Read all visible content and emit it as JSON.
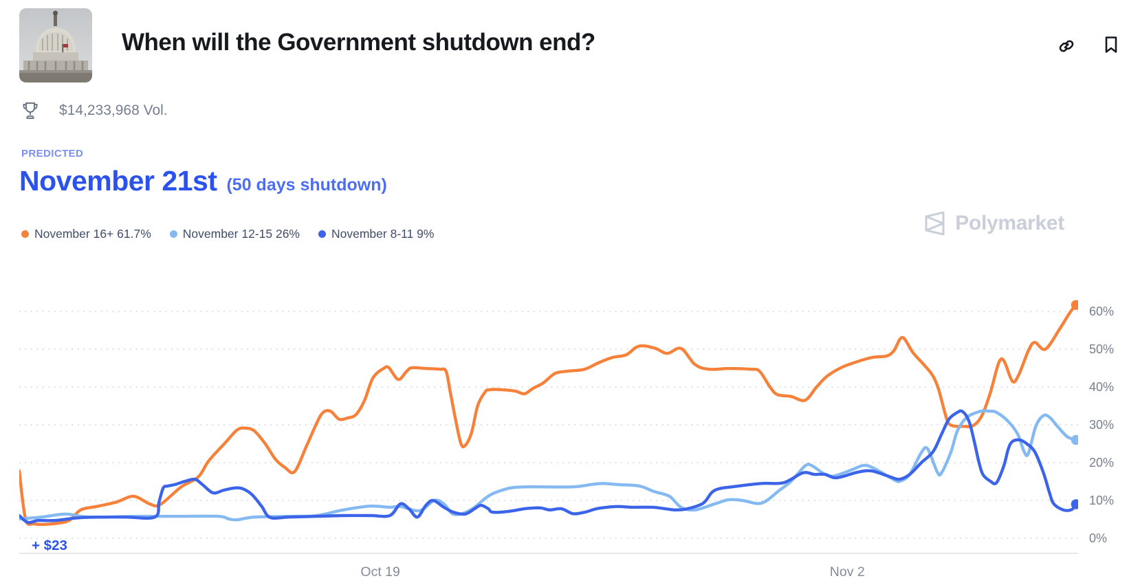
{
  "header": {
    "title": "When will the Government shutdown end?",
    "volume": "$14,233,968 Vol.",
    "avatar_alt": "us-capitol-building",
    "actions": {
      "link_icon": "copy-link",
      "bookmark_icon": "bookmark"
    }
  },
  "predicted": {
    "label": "PREDICTED",
    "value": "November 21st",
    "suffix": "(50 days shutdown)"
  },
  "watermark": {
    "brand": "Polymarket"
  },
  "colors": {
    "accent_blue": "#2b52ea",
    "light_accent_blue": "#7b8ff0",
    "series_orange": "#f5813a",
    "series_light_blue": "#84baf1",
    "series_dark_blue": "#3b64e9",
    "gridline": "#d7d9dd",
    "axis_line": "#e3e6ea",
    "watermark_gray": "#c9ced9"
  },
  "chart_data": {
    "type": "line",
    "title": "When will the Government shutdown end? — outcome probabilities over time",
    "annotation": "+ $23",
    "grid": "dotted-horizontal",
    "legend_position": "top-left",
    "x_axis": {
      "ticks": [
        {
          "label": "Oct 19",
          "pos": 34.1
        },
        {
          "label": "Nov 2",
          "pos": 78.2
        }
      ]
    },
    "y_axis": {
      "unit": "%",
      "ticks": [
        0,
        10,
        20,
        30,
        40,
        50,
        60
      ],
      "range": [
        0,
        72
      ]
    },
    "series": [
      {
        "name": "November 16+",
        "current": "61.7%",
        "color": "#f5813a",
        "points": [
          [
            0,
            17.8
          ],
          [
            0.6,
            5.1
          ],
          [
            1.4,
            3.8
          ],
          [
            3.1,
            3.8
          ],
          [
            4.7,
            4.7
          ],
          [
            5.8,
            7.5
          ],
          [
            7.3,
            8.4
          ],
          [
            9.2,
            9.6
          ],
          [
            10.8,
            11.1
          ],
          [
            12.3,
            9.1
          ],
          [
            13.3,
            8.9
          ],
          [
            15.3,
            13.6
          ],
          [
            16.9,
            16.2
          ],
          [
            17.9,
            20.5
          ],
          [
            19.4,
            25.1
          ],
          [
            20.6,
            28.7
          ],
          [
            21.4,
            29.1
          ],
          [
            22.2,
            28.4
          ],
          [
            23.2,
            25.1
          ],
          [
            24.2,
            20.9
          ],
          [
            25.1,
            18.7
          ],
          [
            26.0,
            17.6
          ],
          [
            27.1,
            24.2
          ],
          [
            28.1,
            30.5
          ],
          [
            28.7,
            33.3
          ],
          [
            29.4,
            33.6
          ],
          [
            30.2,
            31.5
          ],
          [
            31.0,
            31.8
          ],
          [
            31.8,
            32.7
          ],
          [
            32.6,
            36.4
          ],
          [
            33.4,
            42.4
          ],
          [
            34.4,
            44.9
          ],
          [
            34.9,
            45.1
          ],
          [
            35.8,
            42.0
          ],
          [
            36.6,
            44.2
          ],
          [
            37.1,
            45.1
          ],
          [
            38.4,
            44.9
          ],
          [
            39.7,
            44.7
          ],
          [
            40.3,
            44.2
          ],
          [
            40.7,
            38.7
          ],
          [
            41.2,
            31.5
          ],
          [
            41.7,
            25.1
          ],
          [
            42.1,
            24.5
          ],
          [
            42.7,
            27.8
          ],
          [
            43.3,
            35.1
          ],
          [
            44.0,
            38.7
          ],
          [
            44.4,
            39.3
          ],
          [
            45.6,
            39.3
          ],
          [
            46.9,
            38.9
          ],
          [
            47.7,
            38.2
          ],
          [
            48.5,
            39.6
          ],
          [
            49.5,
            41.1
          ],
          [
            50.6,
            43.6
          ],
          [
            51.8,
            44.2
          ],
          [
            53.4,
            44.7
          ],
          [
            54.7,
            46.4
          ],
          [
            56.0,
            47.8
          ],
          [
            57.3,
            48.5
          ],
          [
            58.2,
            50.4
          ],
          [
            58.9,
            50.9
          ],
          [
            60.1,
            50.2
          ],
          [
            61.2,
            48.9
          ],
          [
            62.5,
            50.2
          ],
          [
            63.8,
            46.0
          ],
          [
            65.1,
            44.7
          ],
          [
            67.0,
            44.9
          ],
          [
            69.0,
            44.7
          ],
          [
            69.9,
            44.2
          ],
          [
            70.9,
            40.0
          ],
          [
            71.6,
            38.0
          ],
          [
            72.9,
            37.5
          ],
          [
            74.2,
            36.5
          ],
          [
            75.3,
            40.0
          ],
          [
            76.3,
            42.9
          ],
          [
            77.6,
            45.1
          ],
          [
            78.9,
            46.5
          ],
          [
            80.5,
            47.8
          ],
          [
            81.9,
            48.2
          ],
          [
            82.6,
            49.6
          ],
          [
            83.4,
            53.1
          ],
          [
            84.4,
            49.1
          ],
          [
            85.4,
            46.0
          ],
          [
            86.2,
            43.3
          ],
          [
            86.8,
            39.6
          ],
          [
            87.6,
            31.5
          ],
          [
            88.1,
            29.8
          ],
          [
            89.1,
            29.6
          ],
          [
            90.1,
            29.8
          ],
          [
            90.9,
            32.4
          ],
          [
            91.7,
            38.4
          ],
          [
            92.5,
            46.4
          ],
          [
            93.0,
            46.9
          ],
          [
            93.8,
            41.5
          ],
          [
            94.4,
            43.3
          ],
          [
            95.3,
            49.6
          ],
          [
            95.9,
            51.8
          ],
          [
            96.9,
            50.0
          ],
          [
            98.2,
            55.1
          ],
          [
            99.2,
            59.6
          ],
          [
            99.8,
            61.7
          ]
        ]
      },
      {
        "name": "November 12-15",
        "current": "26%",
        "color": "#84baf1",
        "points": [
          [
            0,
            5.1
          ],
          [
            2.1,
            5.6
          ],
          [
            4.4,
            6.4
          ],
          [
            6.6,
            5.6
          ],
          [
            11.2,
            5.8
          ],
          [
            15.1,
            5.8
          ],
          [
            18.8,
            5.8
          ],
          [
            19.8,
            5.1
          ],
          [
            20.6,
            4.9
          ],
          [
            22.2,
            5.6
          ],
          [
            25.5,
            5.8
          ],
          [
            28.1,
            6.0
          ],
          [
            30.6,
            7.5
          ],
          [
            33.1,
            8.5
          ],
          [
            35.0,
            8.2
          ],
          [
            36.0,
            8.4
          ],
          [
            37.8,
            7.3
          ],
          [
            39.2,
            10.0
          ],
          [
            40.1,
            9.1
          ],
          [
            40.9,
            6.5
          ],
          [
            41.8,
            6.5
          ],
          [
            42.8,
            7.8
          ],
          [
            43.6,
            9.6
          ],
          [
            44.5,
            11.5
          ],
          [
            45.8,
            12.9
          ],
          [
            46.9,
            13.5
          ],
          [
            48.8,
            13.6
          ],
          [
            52.3,
            13.6
          ],
          [
            54.0,
            14.2
          ],
          [
            55.1,
            14.5
          ],
          [
            56.6,
            14.2
          ],
          [
            58.6,
            13.8
          ],
          [
            59.9,
            12.4
          ],
          [
            61.4,
            11.1
          ],
          [
            62.5,
            8.2
          ],
          [
            63.8,
            7.5
          ],
          [
            65.7,
            9.1
          ],
          [
            67.0,
            10.2
          ],
          [
            68.3,
            10.0
          ],
          [
            70.1,
            9.3
          ],
          [
            71.8,
            12.7
          ],
          [
            72.9,
            15.1
          ],
          [
            74.2,
            19.1
          ],
          [
            74.8,
            19.3
          ],
          [
            76.1,
            16.9
          ],
          [
            77.0,
            16.5
          ],
          [
            78.7,
            18.2
          ],
          [
            79.8,
            19.3
          ],
          [
            80.8,
            18.4
          ],
          [
            82.6,
            15.5
          ],
          [
            83.2,
            15.1
          ],
          [
            84.1,
            16.9
          ],
          [
            85.2,
            22.7
          ],
          [
            85.8,
            23.6
          ],
          [
            86.7,
            17.5
          ],
          [
            87.1,
            17.3
          ],
          [
            88.0,
            22.9
          ],
          [
            88.6,
            28.4
          ],
          [
            89.5,
            32.0
          ],
          [
            90.8,
            33.6
          ],
          [
            91.7,
            33.6
          ],
          [
            92.3,
            33.3
          ],
          [
            93.4,
            30.9
          ],
          [
            94.3,
            27.5
          ],
          [
            94.9,
            22.9
          ],
          [
            95.3,
            22.4
          ],
          [
            96.0,
            29.6
          ],
          [
            96.7,
            32.4
          ],
          [
            97.3,
            32.0
          ],
          [
            98.2,
            29.1
          ],
          [
            99.0,
            26.8
          ],
          [
            99.8,
            26.0
          ]
        ]
      },
      {
        "name": "November 8-11",
        "current": "9%",
        "color": "#3b64e9",
        "points": [
          [
            0,
            6.0
          ],
          [
            0.8,
            4.2
          ],
          [
            1.8,
            4.7
          ],
          [
            3.4,
            4.7
          ],
          [
            6.0,
            5.5
          ],
          [
            9.9,
            5.6
          ],
          [
            12.8,
            5.6
          ],
          [
            13.2,
            9.6
          ],
          [
            13.6,
            13.3
          ],
          [
            14.0,
            13.8
          ],
          [
            14.7,
            14.2
          ],
          [
            15.7,
            15.1
          ],
          [
            16.6,
            15.6
          ],
          [
            17.3,
            14.2
          ],
          [
            18.3,
            12.0
          ],
          [
            19.3,
            12.7
          ],
          [
            20.3,
            13.3
          ],
          [
            21.1,
            13.1
          ],
          [
            22.0,
            11.5
          ],
          [
            22.9,
            8.4
          ],
          [
            23.7,
            5.5
          ],
          [
            25.5,
            5.6
          ],
          [
            28.1,
            5.8
          ],
          [
            30.6,
            6.0
          ],
          [
            33.2,
            6.0
          ],
          [
            35.0,
            6.0
          ],
          [
            36.0,
            9.1
          ],
          [
            36.8,
            7.8
          ],
          [
            37.6,
            5.6
          ],
          [
            38.4,
            8.7
          ],
          [
            39.1,
            10.0
          ],
          [
            40.1,
            8.2
          ],
          [
            41.0,
            6.9
          ],
          [
            42.1,
            6.4
          ],
          [
            43.0,
            7.8
          ],
          [
            43.6,
            8.7
          ],
          [
            44.3,
            7.8
          ],
          [
            44.7,
            6.9
          ],
          [
            46.2,
            7.1
          ],
          [
            47.7,
            7.8
          ],
          [
            48.5,
            8.0
          ],
          [
            49.3,
            8.0
          ],
          [
            50.1,
            7.5
          ],
          [
            51.2,
            7.8
          ],
          [
            52.3,
            6.5
          ],
          [
            53.4,
            6.9
          ],
          [
            54.5,
            7.8
          ],
          [
            55.5,
            8.2
          ],
          [
            56.6,
            8.4
          ],
          [
            57.9,
            8.2
          ],
          [
            59.9,
            8.2
          ],
          [
            61.0,
            7.8
          ],
          [
            62.0,
            7.5
          ],
          [
            63.1,
            7.8
          ],
          [
            64.6,
            9.3
          ],
          [
            65.7,
            12.7
          ],
          [
            67.9,
            13.8
          ],
          [
            70.1,
            14.5
          ],
          [
            72.2,
            14.7
          ],
          [
            74.0,
            17.3
          ],
          [
            75.1,
            16.9
          ],
          [
            76.1,
            16.9
          ],
          [
            77.2,
            16.0
          ],
          [
            79.2,
            17.5
          ],
          [
            80.5,
            17.8
          ],
          [
            82.1,
            16.4
          ],
          [
            83.1,
            15.6
          ],
          [
            84.1,
            16.9
          ],
          [
            85.2,
            20.0
          ],
          [
            86.3,
            22.9
          ],
          [
            87.1,
            27.5
          ],
          [
            87.8,
            31.5
          ],
          [
            88.6,
            33.3
          ],
          [
            89.1,
            33.5
          ],
          [
            89.7,
            30.9
          ],
          [
            90.2,
            25.5
          ],
          [
            90.6,
            20.5
          ],
          [
            91.0,
            16.9
          ],
          [
            91.7,
            15.1
          ],
          [
            92.3,
            14.7
          ],
          [
            93.0,
            19.3
          ],
          [
            93.4,
            23.6
          ],
          [
            93.8,
            25.6
          ],
          [
            94.5,
            26.0
          ],
          [
            95.1,
            25.1
          ],
          [
            95.9,
            22.9
          ],
          [
            96.7,
            17.5
          ],
          [
            97.3,
            12.0
          ],
          [
            97.7,
            9.1
          ],
          [
            98.6,
            7.5
          ],
          [
            99.4,
            7.6
          ],
          [
            99.8,
            9.0
          ]
        ]
      }
    ]
  }
}
